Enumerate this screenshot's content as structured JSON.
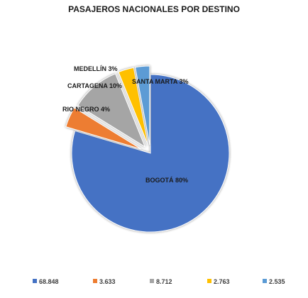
{
  "chart_data": {
    "type": "pie",
    "title": "PASAJEROS NACIONALES POR DESTINO",
    "categories": [
      "BOGOTÁ",
      "RIO NEGRO",
      "CARTAGENA",
      "MEDELLÍN",
      "SANTA MARTA"
    ],
    "values": [
      68848,
      3633,
      8712,
      2763,
      2535
    ],
    "value_labels": [
      "68.848",
      "3.633",
      "8.712",
      "2.763",
      "2.535"
    ],
    "slice_labels": [
      "BOGOTÁ 80%",
      "RIO NEGRO 4%",
      "CARTAGENA 10%",
      "MEDELLÍN 3%",
      "SANTA MARTA 3%"
    ],
    "colors": [
      "#4472C4",
      "#ED7D31",
      "#A5A5A5",
      "#FFC000",
      "#5B9BD5"
    ],
    "exploded": true,
    "legend_position": "bottom"
  }
}
